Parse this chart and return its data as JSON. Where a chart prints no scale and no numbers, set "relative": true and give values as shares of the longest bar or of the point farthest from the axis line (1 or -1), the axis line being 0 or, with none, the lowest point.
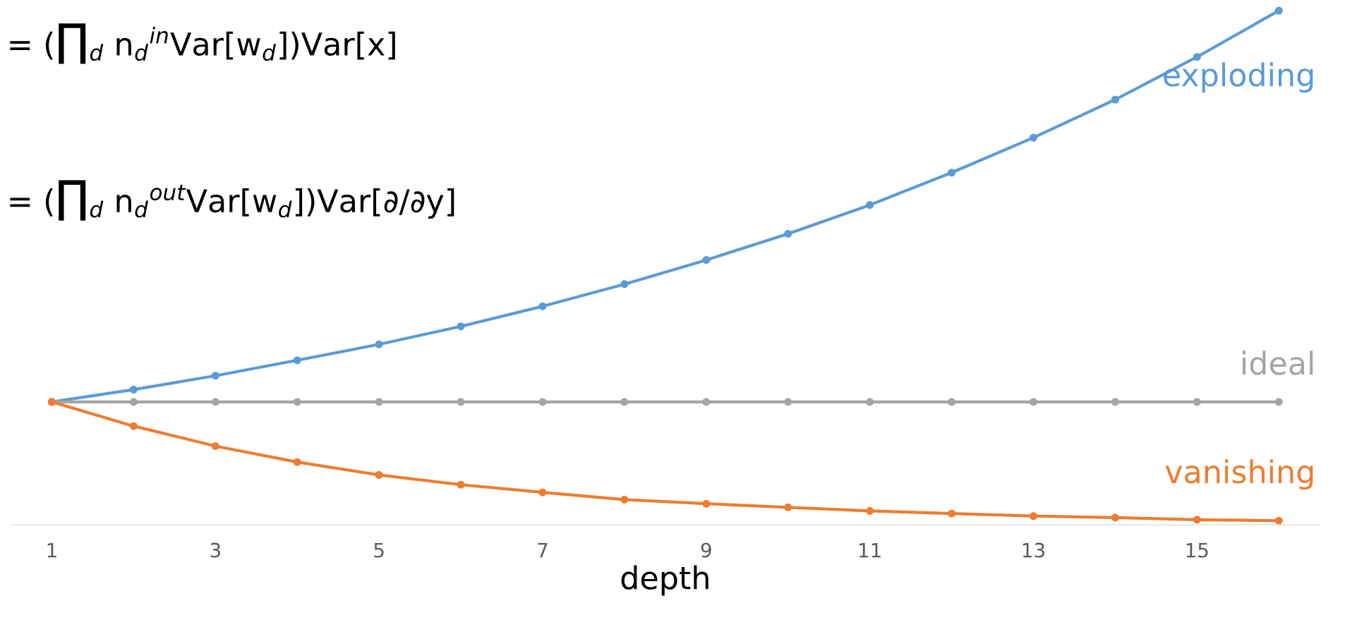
{
  "chart_data": {
    "type": "line",
    "relative": true,
    "xlabel": "depth",
    "categories": [
      "1",
      null,
      "3",
      null,
      "5",
      null,
      "7",
      null,
      "9",
      null,
      "11",
      null,
      "13",
      null,
      "15",
      null
    ],
    "marker": "circle",
    "line_style": "solid",
    "grid": false,
    "legend": false,
    "series": [
      {
        "name": "exploding",
        "color": "#5b9bd5",
        "values": [
          0.239,
          0.263,
          0.29,
          0.32,
          0.351,
          0.386,
          0.425,
          0.468,
          0.515,
          0.566,
          0.622,
          0.685,
          0.753,
          0.827,
          0.91,
          1.0
        ]
      },
      {
        "name": "ideal",
        "color": "#a5a5a5",
        "values": [
          0.239,
          0.239,
          0.239,
          0.239,
          0.239,
          0.239,
          0.239,
          0.239,
          0.239,
          0.239,
          0.239,
          0.239,
          0.239,
          0.239,
          0.239,
          0.239
        ]
      },
      {
        "name": "vanishing",
        "color": "#ed7d31",
        "values": [
          0.239,
          0.192,
          0.153,
          0.122,
          0.097,
          0.078,
          0.063,
          0.049,
          0.041,
          0.034,
          0.027,
          0.022,
          0.017,
          0.014,
          0.01,
          0.008
        ]
      }
    ],
    "annotations": [
      "= (∏$_{d}$ n$_{d}$$^{in}$Var[w$_{d}$])Var[x]",
      "= (∏$_{d}$ n$_{d}$$^{out}$Var[w$_{d}$])Var[∂/∂y]"
    ]
  }
}
